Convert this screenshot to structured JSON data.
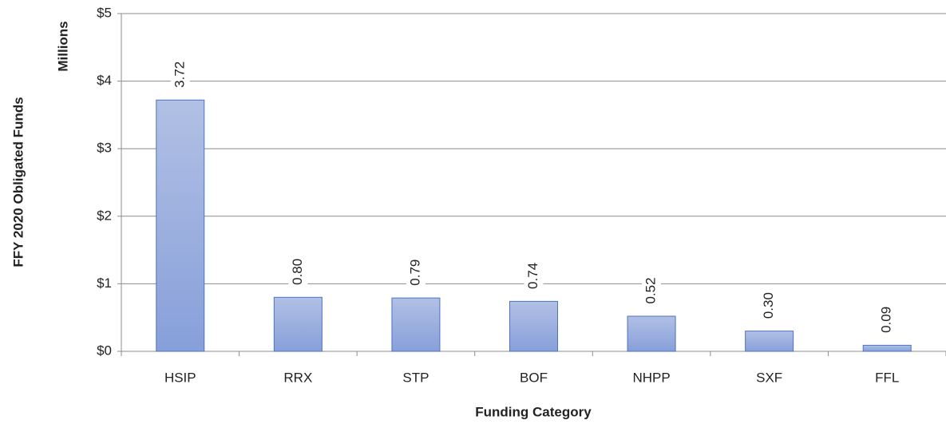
{
  "chart_data": {
    "type": "bar",
    "y_label": "FFY 2020 Obligated Funds",
    "y_unit": "Millions",
    "x_label": "Funding Category",
    "categories": [
      "HSIP",
      "RRX",
      "STP",
      "BOF",
      "NHPP",
      "SXF",
      "FFL"
    ],
    "values": [
      3.72,
      0.8,
      0.79,
      0.74,
      0.52,
      0.3,
      0.09
    ],
    "value_labels": [
      "3.72",
      "0.80",
      "0.79",
      "0.74",
      "0.52",
      "0.30",
      "0.09"
    ],
    "color": "#8ea6dc",
    "ylim": [
      0,
      5
    ],
    "yticks": [
      {
        "value": 0,
        "label": "$0"
      },
      {
        "value": 1,
        "label": "$1"
      },
      {
        "value": 2,
        "label": "$2"
      },
      {
        "value": 3,
        "label": "$3"
      },
      {
        "value": 4,
        "label": "$4"
      },
      {
        "value": 5,
        "label": "$5"
      }
    ],
    "grid": true
  }
}
